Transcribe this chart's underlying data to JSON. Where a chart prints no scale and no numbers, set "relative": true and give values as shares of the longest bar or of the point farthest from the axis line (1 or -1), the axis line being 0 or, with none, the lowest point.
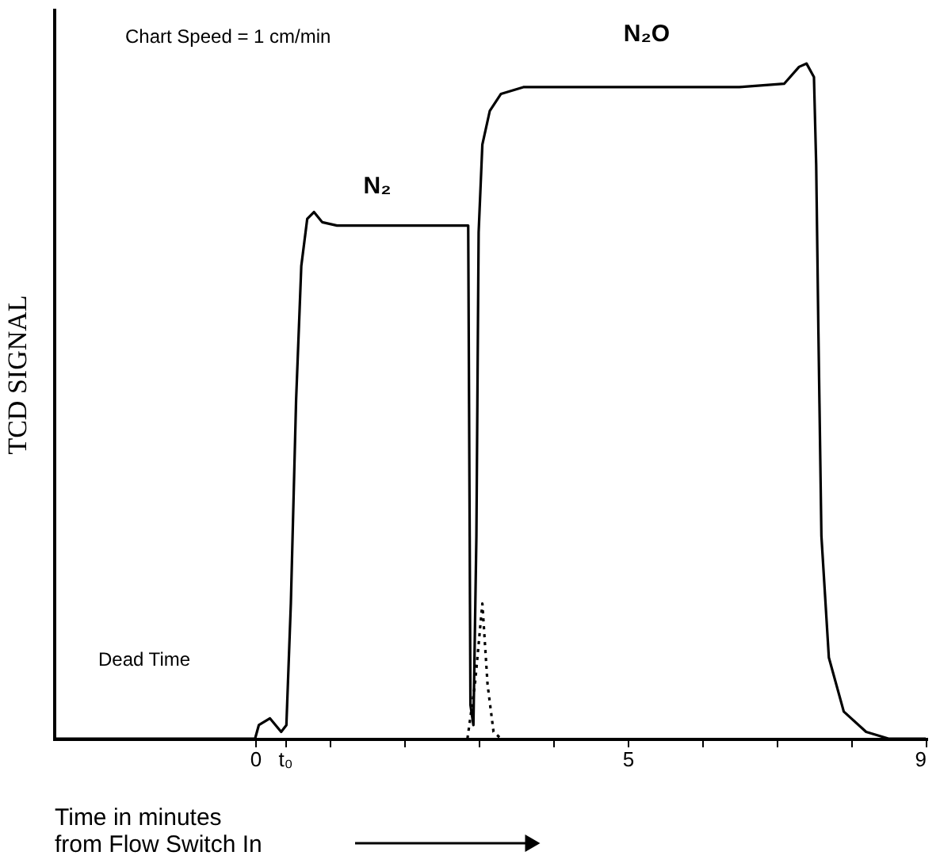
{
  "chart_data": {
    "type": "line",
    "relative": true,
    "xlabel": "Time in minutes\nfrom Flow Switch In",
    "ylabel": "TCD SIGNAL",
    "xlim": [
      -2.7,
      9
    ],
    "xticks": [
      0,
      {
        "value": 0.4,
        "label": "t₀"
      },
      {
        "value": 1,
        "label": null
      },
      {
        "value": 2,
        "label": null
      },
      {
        "value": 3,
        "label": null
      },
      {
        "value": 4,
        "label": null
      },
      5,
      {
        "value": 6,
        "label": null
      },
      {
        "value": 7,
        "label": null
      },
      {
        "value": 8,
        "label": null
      },
      9
    ],
    "tick_labels": "x",
    "grid": false,
    "series": [
      {
        "color": "#000000",
        "line_style": "solid",
        "x": [
          -2.7,
          0,
          0.05,
          0.2,
          0.35,
          0.42,
          0.48,
          0.55,
          0.62,
          0.7,
          0.79,
          0.9,
          1.1,
          1.6,
          2.2,
          2.8,
          2.86,
          2.88,
          2.89,
          2.93,
          2.97,
          3.0,
          3.05,
          3.15,
          3.3,
          3.6,
          5,
          6.5,
          7.1,
          7.3,
          7.4,
          7.5,
          7.53,
          7.56,
          7.6,
          7.7,
          7.9,
          8.2,
          8.5,
          9
        ],
        "values": [
          0,
          0,
          0.02,
          0.03,
          0.01,
          0.02,
          0.2,
          0.5,
          0.7,
          0.77,
          0.78,
          0.765,
          0.76,
          0.76,
          0.76,
          0.76,
          0.76,
          0.3,
          0.05,
          0.02,
          0.3,
          0.75,
          0.88,
          0.93,
          0.955,
          0.965,
          0.965,
          0.965,
          0.97,
          0.995,
          1.0,
          0.98,
          0.85,
          0.6,
          0.3,
          0.12,
          0.04,
          0.01,
          0,
          0
        ]
      },
      {
        "color": "#000000",
        "line_style": "dotted",
        "x": [
          2.85,
          2.95,
          3.05,
          3.12,
          3.2,
          3.3
        ],
        "values": [
          0,
          0.08,
          0.2,
          0.08,
          0.01,
          0
        ]
      }
    ],
    "annotations": [
      "Chart Speed = 1 cm/min",
      "N₂",
      "N₂O",
      "Dead Time"
    ]
  }
}
